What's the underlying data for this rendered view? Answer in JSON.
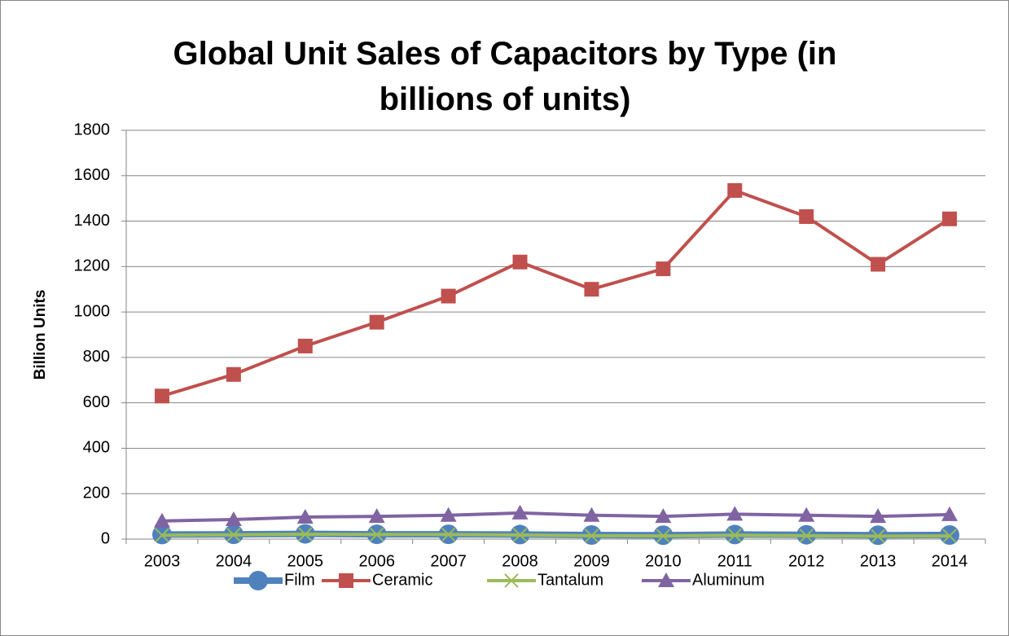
{
  "chart_data": {
    "type": "line",
    "title": "Global Unit Sales of Capacitors by Type (in billions of units)",
    "y_label": "Billion Units",
    "categories": [
      "2003",
      "2004",
      "2005",
      "2006",
      "2007",
      "2008",
      "2009",
      "2010",
      "2011",
      "2012",
      "2013",
      "2014"
    ],
    "series": [
      {
        "name": "Film",
        "color": "#4f81bd",
        "marker": "circle",
        "values": [
          20,
          21,
          23,
          21,
          21,
          20,
          18,
          17,
          20,
          19,
          17,
          18
        ]
      },
      {
        "name": "Ceramic",
        "color": "#c0504d",
        "marker": "square",
        "values": [
          630,
          725,
          850,
          955,
          1070,
          1220,
          1100,
          1190,
          1535,
          1420,
          1210,
          1410
        ]
      },
      {
        "name": "Tantalum",
        "color": "#9bbb59",
        "marker": "x",
        "values": [
          17,
          19,
          21,
          20,
          20,
          18,
          15,
          14,
          17,
          15,
          13,
          14
        ]
      },
      {
        "name": "Aluminum",
        "color": "#8064a2",
        "marker": "triangle",
        "values": [
          80,
          86,
          97,
          100,
          105,
          115,
          105,
          100,
          110,
          105,
          100,
          108
        ]
      }
    ],
    "ylim": [
      0,
      1800
    ],
    "yticks": [
      0,
      200,
      400,
      600,
      800,
      1000,
      1200,
      1400,
      1600,
      1800
    ],
    "grid": true,
    "legend": "bottom"
  }
}
